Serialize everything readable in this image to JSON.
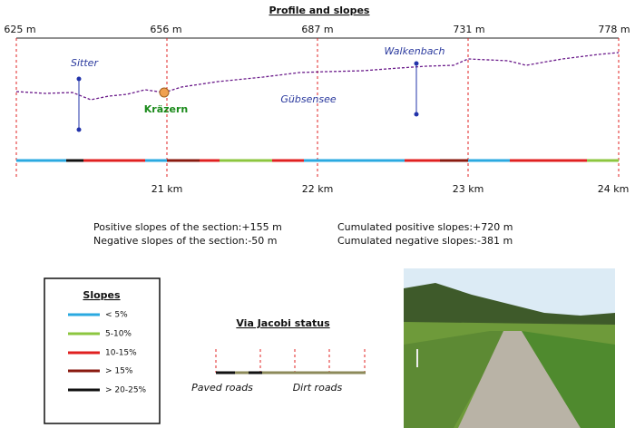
{
  "header": {
    "title": "Profile and slopes"
  },
  "altitudes": [
    "625 m",
    "656 m",
    "687 m",
    "731 m",
    "778 m"
  ],
  "distances": [
    "21 km",
    "22 km",
    "23 km",
    "24 km"
  ],
  "places": {
    "sitter": "Sitter",
    "walkenbach": "Walkenbach",
    "gubsensee": "Gübsensee",
    "krazern": "Kräzern"
  },
  "stats": [
    "Positive slopes of the section:+155 m",
    "Negative slopes of the section:-50 m",
    "Cumulated positive slopes:+720 m",
    "Cumulated negative slopes:-381 m"
  ],
  "legend": {
    "title": "Slopes",
    "items": [
      "< 5%",
      "5-10%",
      "10-15%",
      "> 15%",
      "> 20-25%"
    ]
  },
  "status": {
    "title": "Via Jacobi status",
    "paved": "Paved roads",
    "dirt": "Dirt roads"
  }
}
